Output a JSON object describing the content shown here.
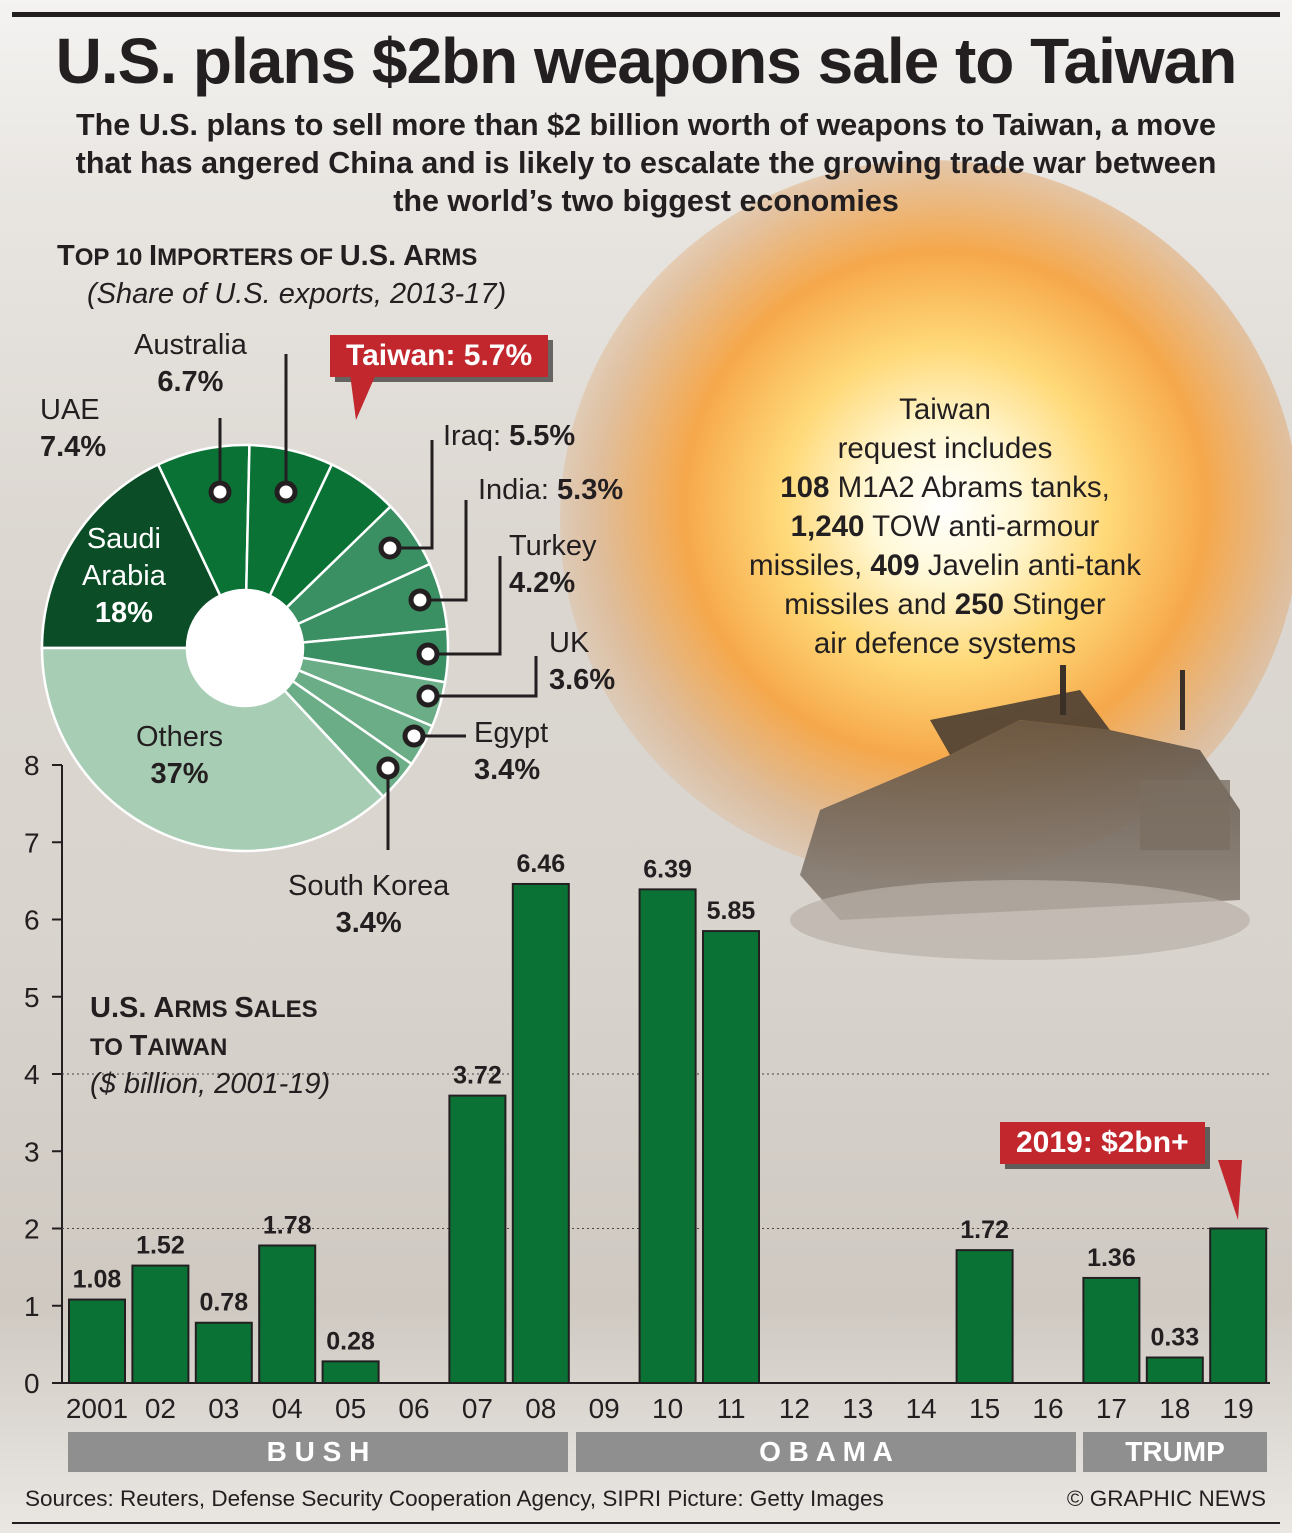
{
  "headline": "U.S. plans $2bn weapons sale to Taiwan",
  "intro": "The U.S. plans to sell more than $2 billion worth of weapons to Taiwan, a move that has angered China and is likely to escalate the growing trade war between the world’s two biggest economies",
  "colors": {
    "bar_green": "#0b7236",
    "callout_red": "#c1272d",
    "era_band": "#8f8f8f",
    "slice_dark": "#0a4d26",
    "slice_mid": "#0b7236",
    "slice_medium": "#3a9062",
    "slice_light": "#6aad86",
    "slice_others": "#a7ceb4"
  },
  "pie_title": {
    "first_big": "T",
    "line1": "OP 10 ",
    "second_big": "I",
    "line2": "MPORTERS OF ",
    "line3": "U.S. A",
    "line4": "RMS"
  },
  "pie_subtitle": "(Share of U.S. exports, 2013-17)",
  "pie_labels": [
    {
      "name": "Australia",
      "value": "6.7%"
    },
    {
      "name": "UAE",
      "value": "7.4%"
    },
    {
      "name": "Iraq:",
      "value": "5.5%"
    },
    {
      "name": "India:",
      "value": "5.3%"
    },
    {
      "name": "Turkey",
      "value": "4.2%"
    },
    {
      "name": "UK",
      "value": "3.6%"
    },
    {
      "name": "Egypt",
      "value": "3.4%"
    },
    {
      "name": "South Korea",
      "value": "3.4%"
    },
    {
      "name_line1": "Saudi",
      "name_line2": "Arabia",
      "value": "18%"
    },
    {
      "name": "Others",
      "value": "37%"
    }
  ],
  "taiwan_callout": "Taiwan: 5.7%",
  "request": {
    "line1": "Taiwan",
    "line2": "request includes",
    "n1": "108",
    "t1": " M1A2 Abrams tanks,",
    "n2": "1,240",
    "t2": " TOW anti-armour",
    "t3a": "missiles, ",
    "n3": "409",
    "t3b": " Javelin anti-tank",
    "t4a": "missiles and ",
    "n4": "250",
    "t4b": " Stinger",
    "line5": "air defence systems"
  },
  "bar_title": {
    "b1": "U.S. A",
    "s1": "RMS ",
    "b2": "S",
    "s2": "ALES",
    "b3": "TO ",
    "b4": "T",
    "s4": "AIWAN"
  },
  "bar_subtitle": "($ billion, 2001-19)",
  "callout_2019": "2019: $2bn+",
  "eras": [
    {
      "label": "B U S H"
    },
    {
      "label": "O B A M A"
    },
    {
      "label": "TRUMP"
    }
  ],
  "sources": "Sources: Reuters, Defense Security Cooperation Agency, SIPRI  Picture: Getty Images",
  "credit": "© GRAPHIC NEWS",
  "chart_data": [
    {
      "type": "pie",
      "title": "Top 10 importers of U.S. arms",
      "subtitle": "(Share of U.S. exports, 2013-17)",
      "slices": [
        {
          "label": "Saudi Arabia",
          "value": 18,
          "color": "#0a4d26"
        },
        {
          "label": "UAE",
          "value": 7.4,
          "color": "#0b7236"
        },
        {
          "label": "Australia",
          "value": 6.7,
          "color": "#0b7236"
        },
        {
          "label": "Taiwan",
          "value": 5.7,
          "color": "#0b7236"
        },
        {
          "label": "Iraq",
          "value": 5.5,
          "color": "#3a9062"
        },
        {
          "label": "India",
          "value": 5.3,
          "color": "#3a9062"
        },
        {
          "label": "Turkey",
          "value": 4.2,
          "color": "#3a9062"
        },
        {
          "label": "UK",
          "value": 3.6,
          "color": "#6aad86"
        },
        {
          "label": "Egypt",
          "value": 3.4,
          "color": "#6aad86"
        },
        {
          "label": "South Korea",
          "value": 3.4,
          "color": "#6aad86"
        },
        {
          "label": "Others",
          "value": 37,
          "color": "#a7ceb4"
        }
      ]
    },
    {
      "type": "bar",
      "title": "U.S. arms sales to Taiwan",
      "subtitle": "($ billion, 2001-19)",
      "categories": [
        "2001",
        "02",
        "03",
        "04",
        "05",
        "06",
        "07",
        "08",
        "09",
        "10",
        "11",
        "12",
        "13",
        "14",
        "15",
        "16",
        "17",
        "18",
        "19"
      ],
      "values": [
        1.08,
        1.52,
        0.78,
        1.78,
        0.28,
        null,
        3.72,
        6.46,
        null,
        6.39,
        5.85,
        null,
        null,
        null,
        1.72,
        null,
        1.36,
        0.33,
        2.0
      ],
      "value_labels": [
        "1.08",
        "1.52",
        "0.78",
        "1.78",
        "0.28",
        "",
        "3.72",
        "6.46",
        "",
        "6.39",
        "5.85",
        "",
        "",
        "",
        "1.72",
        "",
        "1.36",
        "0.33",
        ""
      ],
      "yticks": [
        "0",
        "1",
        "2",
        "3",
        "4",
        "5",
        "6",
        "7",
        "8"
      ],
      "ylim": [
        0,
        8
      ],
      "grid": "dotted at 2 and 4"
    }
  ]
}
